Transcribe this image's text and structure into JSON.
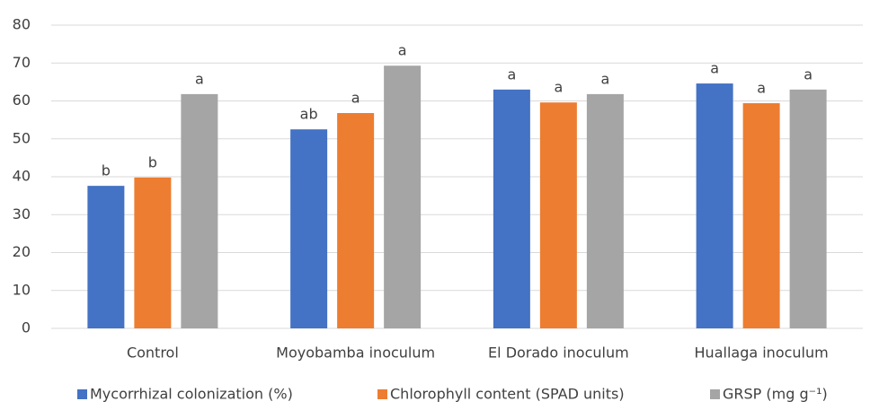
{
  "chart_data": {
    "type": "bar",
    "categories": [
      "Control",
      "Moyobamba inoculum",
      "El Dorado inoculum",
      "Huallaga inoculum"
    ],
    "series": [
      {
        "name": "Mycorrhizal colonization (%)",
        "color": "#4472c4",
        "values": [
          37.6,
          52.5,
          63,
          64.6
        ],
        "annotations": [
          "b",
          "ab",
          "a",
          "a"
        ]
      },
      {
        "name": "Chlorophyll content (SPAD units)",
        "color": "#ed7d31",
        "values": [
          39.8,
          56.8,
          59.6,
          59.4
        ],
        "annotations": [
          "b",
          "a",
          "a",
          "a"
        ]
      },
      {
        "name": "GRSP (mg g⁻¹)",
        "color": "#a5a5a5",
        "values": [
          61.8,
          69.3,
          61.8,
          63
        ],
        "annotations": [
          "a",
          "a",
          "a",
          "a"
        ]
      }
    ],
    "ylim": [
      0,
      80
    ],
    "yticks": [
      0,
      10,
      20,
      30,
      40,
      50,
      60,
      70,
      80
    ],
    "grid": true,
    "legend": "bottom"
  }
}
